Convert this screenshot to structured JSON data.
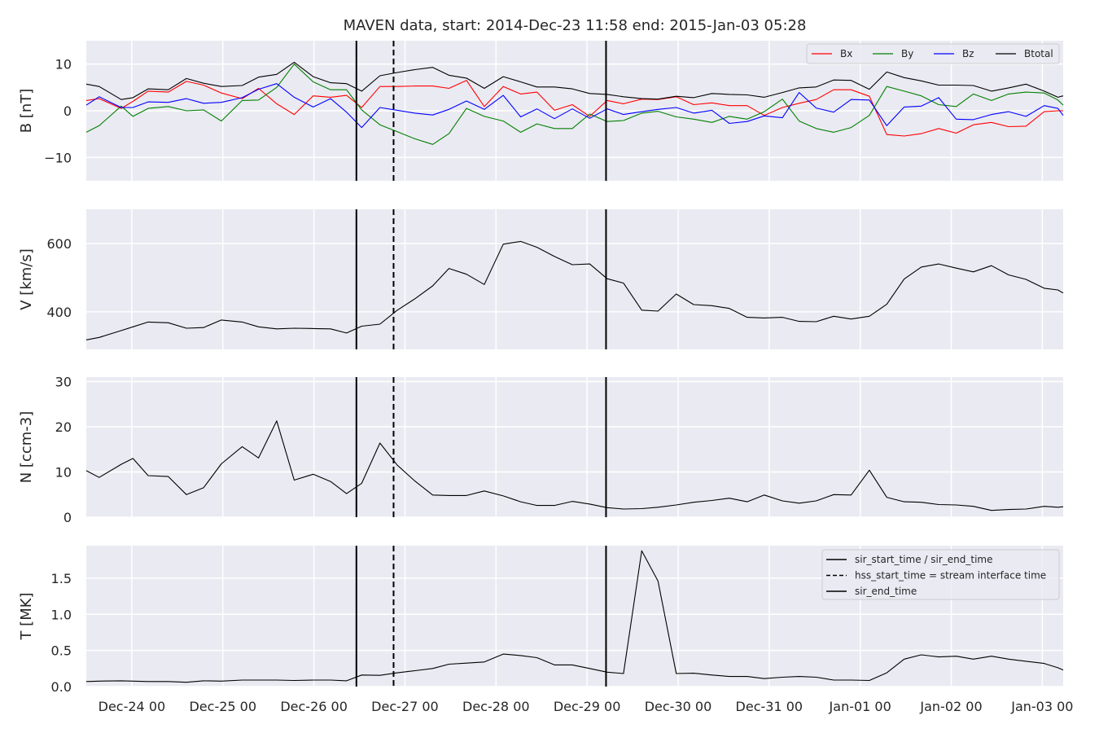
{
  "title": "MAVEN data, start: 2014-Dec-23 11:58  end: 2015-Jan-03 05:28",
  "chart_data": {
    "type": "line",
    "x_axis": {
      "unit": "hours since 2014-Dec-23 12:00",
      "range": [
        0,
        257.5
      ],
      "tick_values": [
        12,
        36,
        60,
        84,
        108,
        132,
        156,
        180,
        204,
        228,
        252
      ],
      "tick_labels": [
        "Dec-24 00",
        "Dec-25 00",
        "Dec-26 00",
        "Dec-27 00",
        "Dec-28 00",
        "Dec-29 00",
        "Dec-30 00",
        "Dec-31 00",
        "Jan-01 00",
        "Jan-02 00",
        "Jan-03 00"
      ]
    },
    "markers": [
      {
        "x": 71.2,
        "style": "solid"
      },
      {
        "x": 81.0,
        "style": "dashed"
      },
      {
        "x": 137.0,
        "style": "solid"
      }
    ],
    "x": [
      0,
      3.4,
      9.2,
      12.3,
      16.3,
      21.6,
      26.4,
      30.9,
      35.6,
      41.1,
      45.4,
      50.2,
      54.8,
      59.8,
      64.4,
      68.6,
      72.6,
      77.4,
      82.0,
      86.6,
      91.3,
      95.6,
      100.2,
      104.9,
      109.9,
      114.5,
      118.8,
      123.4,
      128.1,
      132.7,
      137.3,
      141.6,
      146.4,
      150.7,
      155.5,
      160.1,
      164.9,
      169.5,
      174.2,
      178.7,
      183.5,
      187.9,
      192.4,
      197.0,
      201.6,
      206.4,
      211.0,
      215.6,
      220.1,
      224.7,
      229.3,
      233.8,
      238.6,
      243.1,
      247.7,
      252.5,
      256.1,
      257.5
    ],
    "panels": [
      {
        "ylabel": "B [nT]",
        "ylim": [
          -15,
          15
        ],
        "ticks": [
          -10,
          0,
          10
        ],
        "tick_labels": [
          "−10",
          "0",
          "10"
        ],
        "legend": {
          "position": "top-right",
          "layout": "horizontal"
        },
        "series": [
          {
            "name": "Bx",
            "color": "#ff0000",
            "dash": "solid",
            "values": [
              2.2,
              2.6,
              0.5,
              2.0,
              4.2,
              4.0,
              6.3,
              5.5,
              3.8,
              2.6,
              4.8,
              1.5,
              -0.8,
              3.2,
              2.9,
              3.3,
              0.7,
              5.2,
              5.2,
              5.3,
              5.3,
              4.8,
              6.5,
              0.9,
              5.2,
              3.6,
              4.0,
              0.1,
              1.3,
              -1.2,
              2.2,
              1.5,
              2.5,
              2.4,
              3.0,
              1.3,
              1.7,
              1.1,
              1.1,
              -1.0,
              0.7,
              1.6,
              2.4,
              4.5,
              4.5,
              3.1,
              -5.1,
              -5.4,
              -4.9,
              -3.8,
              -4.8,
              -3.0,
              -2.5,
              -3.4,
              -3.3,
              -0.2,
              0.0,
              0.0
            ]
          },
          {
            "name": "By",
            "color": "#008000",
            "dash": "solid",
            "values": [
              -4.6,
              -3.2,
              1.0,
              -1.2,
              0.5,
              0.9,
              0.0,
              0.2,
              -2.2,
              2.2,
              2.3,
              5.0,
              10.0,
              6.2,
              4.5,
              4.5,
              0.2,
              -3.0,
              -4.5,
              -6.0,
              -7.2,
              -4.9,
              0.5,
              -1.2,
              -2.2,
              -4.6,
              -2.8,
              -3.8,
              -3.8,
              -0.7,
              -2.3,
              -2.1,
              -0.5,
              -0.1,
              -1.3,
              -1.8,
              -2.5,
              -1.2,
              -1.8,
              -0.2,
              2.5,
              -2.2,
              -3.8,
              -4.6,
              -3.6,
              -1.0,
              5.2,
              4.2,
              3.2,
              1.3,
              0.9,
              3.6,
              2.2,
              3.6,
              4.0,
              3.8,
              2.3,
              1.2
            ]
          },
          {
            "name": "Bz",
            "color": "#0000ff",
            "dash": "solid",
            "values": [
              1.2,
              3.0,
              0.7,
              0.7,
              1.9,
              1.8,
              2.6,
              1.6,
              1.8,
              2.8,
              4.6,
              5.8,
              2.9,
              0.8,
              2.6,
              -0.3,
              -3.6,
              0.7,
              0.1,
              -0.5,
              -0.9,
              0.3,
              2.1,
              0.3,
              3.3,
              -1.3,
              0.4,
              -1.7,
              0.4,
              -1.6,
              0.4,
              -0.8,
              -0.2,
              0.3,
              0.7,
              -0.5,
              0.1,
              -2.7,
              -2.3,
              -1.1,
              -1.5,
              3.9,
              0.6,
              -0.3,
              2.4,
              2.3,
              -3.2,
              0.8,
              1.0,
              2.8,
              -1.8,
              -1.9,
              -0.8,
              -0.2,
              -1.2,
              1.1,
              0.5,
              -1.0
            ]
          },
          {
            "name": "Btotal",
            "color": "#000000",
            "dash": "solid",
            "values": [
              5.7,
              5.2,
              2.4,
              2.8,
              4.7,
              4.5,
              6.9,
              5.9,
              5.2,
              5.4,
              7.2,
              7.8,
              10.4,
              7.3,
              6.0,
              5.8,
              4.2,
              7.5,
              8.2,
              8.8,
              9.3,
              7.6,
              7.0,
              4.8,
              7.3,
              6.2,
              5.1,
              5.1,
              4.7,
              3.7,
              3.5,
              3.0,
              2.6,
              2.5,
              3.1,
              2.8,
              3.7,
              3.5,
              3.4,
              2.9,
              3.9,
              4.9,
              5.1,
              6.6,
              6.5,
              4.6,
              8.3,
              7.1,
              6.4,
              5.5,
              5.5,
              5.4,
              4.2,
              4.9,
              5.7,
              4.2,
              2.9,
              3.2
            ]
          }
        ]
      },
      {
        "ylabel": "V [km/s]",
        "ylim": [
          290,
          700
        ],
        "ticks": [
          400,
          600
        ],
        "tick_labels": [
          "400",
          "600"
        ],
        "series": [
          {
            "name": "",
            "color": "#000000",
            "dash": "solid",
            "values": [
              318,
              325,
              345,
              356,
              370,
              368,
              352,
              354,
              376,
              370,
              356,
              350,
              352,
              351,
              350,
              338,
              358,
              364,
              405,
              438,
              476,
              527,
              510,
              480,
              598,
              606,
              589,
              562,
              538,
              540,
              497,
              484,
              405,
              402,
              452,
              421,
              418,
              410,
              384,
              382,
              384,
              372,
              371,
              387,
              379,
              387,
              422,
              496,
              531,
              540,
              528,
              517,
              535,
              508,
              495,
              469,
              464,
              455
            ]
          }
        ]
      },
      {
        "ylabel": "N [ccm-3]",
        "ylim": [
          0,
          31
        ],
        "ticks": [
          0,
          10,
          20,
          30
        ],
        "tick_labels": [
          "0",
          "10",
          "20",
          "30"
        ],
        "series": [
          {
            "name": "",
            "color": "#000000",
            "dash": "solid",
            "values": [
              10.3,
              8.8,
              11.7,
              13.0,
              9.2,
              9.0,
              5.0,
              6.5,
              11.8,
              15.6,
              13.1,
              21.3,
              8.2,
              9.5,
              7.9,
              5.2,
              7.5,
              16.4,
              11.5,
              8.0,
              4.9,
              4.8,
              4.8,
              5.8,
              4.7,
              3.4,
              2.6,
              2.6,
              3.5,
              2.9,
              2.1,
              1.8,
              1.9,
              2.2,
              2.7,
              3.3,
              3.7,
              4.2,
              3.4,
              4.9,
              3.6,
              3.1,
              3.6,
              5.0,
              4.9,
              10.4,
              4.4,
              3.4,
              3.3,
              2.8,
              2.7,
              2.4,
              1.5,
              1.7,
              1.8,
              2.4,
              2.2,
              2.3
            ]
          }
        ]
      },
      {
        "ylabel": "T [MK]",
        "ylim": [
          0,
          1.95
        ],
        "ticks": [
          0.0,
          0.5,
          1.0,
          1.5
        ],
        "tick_labels": [
          "0.0",
          "0.5",
          "1.0",
          "1.5"
        ],
        "legend": {
          "position": "top-right",
          "layout": "vertical"
        },
        "legend_entries": [
          {
            "label": "sir_start_time / sir_end_time",
            "dash": "solid"
          },
          {
            "label": "hss_start_time = stream interface time",
            "dash": "dashed"
          },
          {
            "label": "sir_end_time",
            "dash": "solid"
          }
        ],
        "series": [
          {
            "name": "",
            "color": "#000000",
            "dash": "solid",
            "values": [
              0.07,
              0.075,
              0.08,
              0.075,
              0.07,
              0.07,
              0.06,
              0.08,
              0.075,
              0.09,
              0.09,
              0.09,
              0.085,
              0.09,
              0.09,
              0.08,
              0.16,
              0.155,
              0.19,
              0.22,
              0.25,
              0.31,
              0.325,
              0.34,
              0.45,
              0.43,
              0.4,
              0.3,
              0.3,
              0.25,
              0.2,
              0.18,
              1.88,
              1.46,
              0.18,
              0.185,
              0.16,
              0.14,
              0.14,
              0.11,
              0.13,
              0.14,
              0.13,
              0.09,
              0.09,
              0.085,
              0.19,
              0.38,
              0.44,
              0.41,
              0.42,
              0.38,
              0.42,
              0.38,
              0.35,
              0.32,
              0.26,
              0.23
            ]
          }
        ]
      }
    ]
  }
}
